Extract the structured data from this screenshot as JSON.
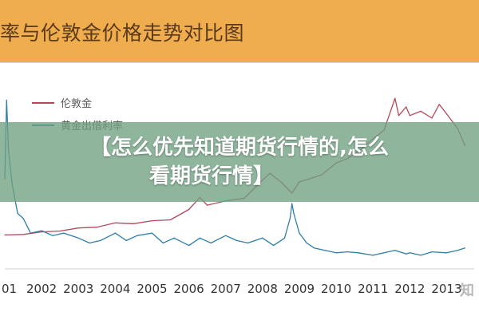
{
  "header": {
    "title": "率与伦敦金价格走势对比图"
  },
  "overlay": {
    "line1": "【怎么优先知道期货行情的,怎么",
    "line2": "看期货行情】"
  },
  "watermark": "知",
  "colors": {
    "gold_series": "#b5475a",
    "rate_series": "#2e7ea8",
    "header_bg": "#f0ad4e",
    "overlay_bg": "#6fa082"
  },
  "chart_data": {
    "type": "line",
    "x_ticks": [
      "01",
      "2002",
      "2003",
      "2004",
      "2005",
      "2006",
      "2007",
      "2008",
      "2009",
      "2010",
      "2011",
      "2012",
      "2013"
    ],
    "legend": [
      "伦敦金",
      "黄金出借利率"
    ],
    "legend_position": "top-left",
    "grid": false,
    "series": [
      {
        "name": "伦敦金",
        "color": "#b5475a",
        "x": [
          2001.0,
          2001.5,
          2002.0,
          2002.5,
          2003.0,
          2003.5,
          2004.0,
          2004.5,
          2005.0,
          2005.5,
          2006.0,
          2006.3,
          2006.5,
          2007.0,
          2007.5,
          2008.0,
          2008.2,
          2008.5,
          2008.8,
          2009.0,
          2009.3,
          2009.6,
          2010.0,
          2010.3,
          2010.6,
          2011.0,
          2011.3,
          2011.6,
          2011.7,
          2011.9,
          2012.0,
          2012.3,
          2012.6,
          2012.8,
          2013.0,
          2013.3,
          2013.5
        ],
        "y": [
          265,
          270,
          300,
          310,
          345,
          355,
          405,
          395,
          430,
          440,
          560,
          700,
          610,
          660,
          690,
          900,
          980,
          880,
          750,
          880,
          920,
          960,
          1100,
          1150,
          1230,
          1380,
          1480,
          1850,
          1650,
          1750,
          1650,
          1700,
          1620,
          1780,
          1670,
          1500,
          1300
        ]
      },
      {
        "name": "黄金出借利率",
        "color": "#2e7ea8",
        "x": [
          2001.0,
          2001.05,
          2001.1,
          2001.2,
          2001.35,
          2001.5,
          2001.7,
          2002.0,
          2002.3,
          2002.6,
          2003.0,
          2003.3,
          2003.6,
          2004.0,
          2004.3,
          2004.6,
          2005.0,
          2005.3,
          2005.6,
          2006.0,
          2006.3,
          2006.6,
          2007.0,
          2007.3,
          2007.6,
          2008.0,
          2008.3,
          2008.6,
          2008.75,
          2008.8,
          2008.85,
          2009.0,
          2009.2,
          2009.4,
          2009.7,
          2010.0,
          2010.3,
          2010.6,
          2011.0,
          2011.3,
          2011.6,
          2011.9,
          2012.0,
          2012.3,
          2012.6,
          2013.0,
          2013.3,
          2013.5
        ],
        "y": [
          1.6,
          3.2,
          2.2,
          1.5,
          0.9,
          0.8,
          0.5,
          0.55,
          0.45,
          0.5,
          0.4,
          0.3,
          0.35,
          0.5,
          0.35,
          0.45,
          0.5,
          0.3,
          0.4,
          0.25,
          0.4,
          0.3,
          0.45,
          0.35,
          0.3,
          0.4,
          0.25,
          0.4,
          0.8,
          1.1,
          0.9,
          0.5,
          0.3,
          0.2,
          0.15,
          0.1,
          0.12,
          0.1,
          0.05,
          0.1,
          0.15,
          0.08,
          0.1,
          0.05,
          0.12,
          0.1,
          0.15,
          0.2
        ]
      }
    ]
  }
}
